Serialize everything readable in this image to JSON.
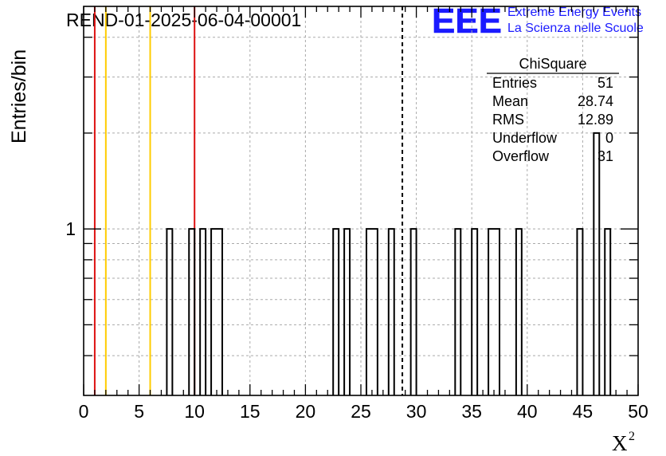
{
  "chart_data": {
    "type": "bar",
    "title": "REND-01-2025-06-04-00001",
    "xlabel": "X",
    "xlabel_superscript": "2",
    "ylabel": "Entries/bin",
    "xlim": [
      0,
      50
    ],
    "ylim_log": [
      0.3,
      5
    ],
    "log_y": true,
    "grid": true,
    "bin_width": 0.5,
    "x_ticks": [
      "0",
      "5",
      "10",
      "15",
      "20",
      "25",
      "30",
      "35",
      "40",
      "45",
      "50"
    ],
    "y_tick_label": "1",
    "bins": [
      {
        "x0": 7.5,
        "x1": 8.0,
        "count": 1
      },
      {
        "x0": 9.5,
        "x1": 10.0,
        "count": 1
      },
      {
        "x0": 10.5,
        "x1": 11.0,
        "count": 1
      },
      {
        "x0": 11.5,
        "x1": 12.5,
        "count": 1
      },
      {
        "x0": 22.5,
        "x1": 23.0,
        "count": 1
      },
      {
        "x0": 23.5,
        "x1": 24.0,
        "count": 1
      },
      {
        "x0": 25.5,
        "x1": 26.5,
        "count": 1
      },
      {
        "x0": 27.5,
        "x1": 28.0,
        "count": 1
      },
      {
        "x0": 29.5,
        "x1": 30.0,
        "count": 1
      },
      {
        "x0": 33.5,
        "x1": 34.0,
        "count": 1
      },
      {
        "x0": 35.0,
        "x1": 35.5,
        "count": 1
      },
      {
        "x0": 36.5,
        "x1": 37.5,
        "count": 1
      },
      {
        "x0": 39.0,
        "x1": 39.5,
        "count": 1
      },
      {
        "x0": 44.5,
        "x1": 45.0,
        "count": 1
      },
      {
        "x0": 46.0,
        "x1": 46.5,
        "count": 2
      },
      {
        "x0": 47.0,
        "x1": 47.5,
        "count": 1
      }
    ],
    "vertical_lines": [
      {
        "x": 1.0,
        "color": "#dd1111",
        "style": "solid"
      },
      {
        "x": 2.0,
        "color": "#ffcc00",
        "style": "solid"
      },
      {
        "x": 6.0,
        "color": "#ffcc00",
        "style": "solid"
      },
      {
        "x": 10.0,
        "color": "#dd1111",
        "style": "solid"
      },
      {
        "x": 28.74,
        "color": "#000000",
        "style": "dashed"
      }
    ],
    "stats_box": {
      "title": "ChiSquare",
      "rows": [
        {
          "label": "Entries",
          "value": "51"
        },
        {
          "label": "Mean",
          "value": "28.74"
        },
        {
          "label": "RMS",
          "value": "12.89"
        },
        {
          "label": "Underflow",
          "value": "0"
        },
        {
          "label": "Overflow",
          "value": "31"
        }
      ]
    }
  },
  "logo": {
    "mark": "EEE",
    "line1": "Extreme Energy Events",
    "line2": "La Scienza nelle Scuole",
    "color": "#1a1aff"
  }
}
